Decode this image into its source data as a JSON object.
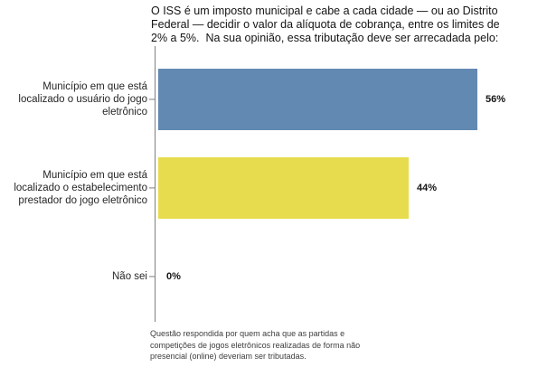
{
  "title": {
    "lines": [
      "O ISS é um imposto municipal e cabe a cada cidade — ou ao Distrito",
      "Federal — decidir o valor da alíquota de cobrança, entre os limites de",
      "2% a 5%.  Na sua opinião, essa tributação deve ser arrecadada pelo:"
    ]
  },
  "footnote": {
    "lines": [
      "Questão respondida por quem acha que as partidas e",
      "competições de jogos eletrônicos realizadas de forma não",
      "presencial (online) deveriam ser tributadas."
    ]
  },
  "colors": {
    "bar_blue": "#6289b2",
    "bar_yellow": "#e7dc4e",
    "axis": "#7f7f7f",
    "text": "#141414",
    "background": "#ffffff"
  },
  "chart_data": {
    "type": "bar",
    "orientation": "horizontal",
    "title": "O ISS é um imposto municipal e cabe a cada cidade — ou ao Distrito Federal — decidir o valor da alíquota de cobrança, entre os limites de 2% a 5%.  Na sua opinião, essa tributação deve ser arrecadada pelo:",
    "categories": [
      "Município em que está localizado o usuário do jogo eletrônico",
      "Município em que está localizado o estabelecimento prestador do jogo eletrônico",
      "Não sei"
    ],
    "values": [
      56,
      44,
      0
    ],
    "value_labels": [
      "56%",
      "44%",
      "0%"
    ],
    "bar_colors": [
      "#6289b2",
      "#e7dc4e",
      null
    ],
    "xlabel": "",
    "ylabel": "",
    "value_axis_visible": false,
    "grid": false,
    "legend": "none",
    "footnote": "Questão respondida por quem acha que as partidas e competições de jogos eletrônicos realizadas de forma não presencial (online) deveriam ser tributadas."
  }
}
